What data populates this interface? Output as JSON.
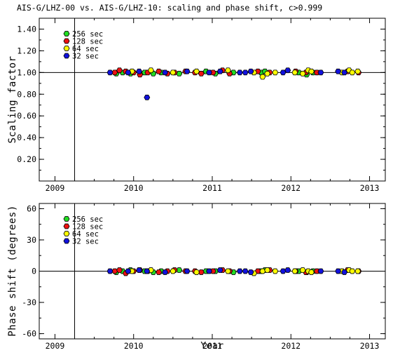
{
  "title": "AIS-G/LHZ-00 vs. AIS-G/LHZ-10: scaling and phase shift, c>0.999",
  "colors": {
    "256 sec": "#22dd22",
    "128 sec": "#ee1111",
    "64 sec": "#ffff00",
    "32 sec": "#1111dd",
    "outline": "#000000",
    "background": "#ffffff"
  },
  "chart_data": [
    {
      "type": "scatter",
      "ylabel": "Scaling factor",
      "xlabel": "",
      "xlim": [
        2008.8,
        2013.2
      ],
      "ylim": [
        0.0,
        1.5
      ],
      "xticks": [
        "2009",
        "2010",
        "2011",
        "2012",
        "2013"
      ],
      "yticks": [
        "0.20",
        "0.40",
        "0.60",
        "0.80",
        "1.00",
        "1.20",
        "1.40"
      ],
      "reference_line_y": 1.0,
      "reference_line_x": 2009.25,
      "grid": false,
      "legend_position": "top-left",
      "legend": [
        "256 sec",
        "128 sec",
        "64 sec",
        "32 sec"
      ],
      "series": [
        {
          "name": "256 sec",
          "x": [
            2009.78,
            2009.86,
            2009.96,
            2010.14,
            2010.25,
            2010.35,
            2010.58,
            2010.92,
            2011.04,
            2011.27,
            2011.62,
            2011.67,
            2012.1,
            2012.2,
            2012.28
          ],
          "y": [
            0.99,
            1.0,
            0.99,
            1.0,
            0.99,
            1.0,
            0.99,
            1.01,
            0.99,
            1.0,
            1.0,
            1.01,
            1.0,
            0.98,
            1.0
          ]
        },
        {
          "name": "128 sec",
          "x": [
            2009.76,
            2009.82,
            2009.9,
            2010.0,
            2010.08,
            2010.18,
            2010.32,
            2010.43,
            2010.52,
            2010.66,
            2010.78,
            2010.86,
            2011.01,
            2011.13,
            2011.22,
            2011.58,
            2011.73,
            2012.06,
            2012.19,
            2012.33,
            2012.72,
            2012.86
          ],
          "y": [
            1.0,
            1.02,
            1.01,
            1.0,
            0.98,
            1.0,
            1.01,
            0.99,
            1.0,
            1.01,
            1.0,
            0.99,
            1.0,
            1.02,
            0.99,
            1.01,
            1.0,
            1.01,
            1.0,
            1.0,
            1.01,
            1.0
          ]
        },
        {
          "name": "64 sec",
          "x": [
            2009.98,
            2010.22,
            2010.5,
            2010.8,
            2011.2,
            2011.53,
            2011.64,
            2011.7,
            2011.8,
            2012.05,
            2012.15,
            2012.22,
            2012.26,
            2012.65,
            2012.74,
            2012.78,
            2012.85
          ],
          "y": [
            1.01,
            1.02,
            1.0,
            1.01,
            1.02,
            1.0,
            0.96,
            0.99,
            1.0,
            1.0,
            0.99,
            1.02,
            1.01,
            1.0,
            1.02,
            1.0,
            1.01
          ]
        },
        {
          "name": "32 sec",
          "x": [
            2009.7,
            2009.93,
            2010.07,
            2010.17,
            2010.4,
            2010.68,
            2010.96,
            2011.1,
            2011.35,
            2011.42,
            2011.49,
            2011.9,
            2011.96,
            2012.38,
            2012.6,
            2012.68
          ],
          "y": [
            1.0,
            1.0,
            1.01,
            0.77,
            1.0,
            1.01,
            1.0,
            1.01,
            1.0,
            1.0,
            1.01,
            1.0,
            1.02,
            1.0,
            1.01,
            1.0
          ]
        }
      ]
    },
    {
      "type": "scatter",
      "ylabel": "Phase shift (degrees)",
      "xlabel": "Year",
      "xlim": [
        2008.8,
        2013.2
      ],
      "ylim": [
        -65,
        65
      ],
      "xticks": [
        "2009",
        "2010",
        "2011",
        "2012",
        "2013"
      ],
      "yticks": [
        "-60",
        "-30",
        "0",
        "30",
        "60"
      ],
      "reference_line_y": 0,
      "reference_line_x": 2009.25,
      "grid": false,
      "legend_position": "top-left",
      "legend": [
        "256 sec",
        "128 sec",
        "64 sec",
        "32 sec"
      ],
      "series": [
        {
          "name": "256 sec",
          "x": [
            2009.78,
            2009.86,
            2009.96,
            2010.14,
            2010.25,
            2010.35,
            2010.58,
            2010.92,
            2011.04,
            2011.27,
            2011.62,
            2011.67,
            2012.1,
            2012.2,
            2012.28
          ],
          "y": [
            -1,
            0,
            1,
            0,
            -1,
            0,
            1,
            0,
            0,
            -1,
            0,
            1,
            0,
            -1,
            0
          ]
        },
        {
          "name": "128 sec",
          "x": [
            2009.76,
            2009.82,
            2009.9,
            2010.0,
            2010.08,
            2010.18,
            2010.32,
            2010.43,
            2010.52,
            2010.66,
            2010.78,
            2010.86,
            2011.01,
            2011.13,
            2011.22,
            2011.58,
            2011.73,
            2012.06,
            2012.19,
            2012.33,
            2012.72,
            2012.86
          ],
          "y": [
            0,
            1,
            -2,
            0,
            1,
            0,
            -1,
            0,
            1,
            0,
            0,
            -1,
            0,
            1,
            0,
            0,
            1,
            0,
            -1,
            0,
            1,
            0
          ]
        },
        {
          "name": "64 sec",
          "x": [
            2009.98,
            2010.22,
            2010.5,
            2010.8,
            2011.2,
            2011.53,
            2011.64,
            2011.7,
            2011.8,
            2012.05,
            2012.15,
            2012.22,
            2012.26,
            2012.65,
            2012.74,
            2012.78,
            2012.85
          ],
          "y": [
            0,
            1,
            0,
            -1,
            0,
            -2,
            0,
            1,
            0,
            0,
            1,
            0,
            -1,
            0,
            1,
            0,
            0
          ]
        },
        {
          "name": "32 sec",
          "x": [
            2009.7,
            2009.93,
            2010.07,
            2010.17,
            2010.4,
            2010.68,
            2010.96,
            2011.1,
            2011.35,
            2011.42,
            2011.49,
            2011.9,
            2011.96,
            2012.38,
            2012.6,
            2012.68
          ],
          "y": [
            0,
            0,
            1,
            0,
            -1,
            0,
            0,
            1,
            0,
            0,
            -1,
            0,
            1,
            0,
            0,
            -1
          ]
        }
      ]
    }
  ]
}
